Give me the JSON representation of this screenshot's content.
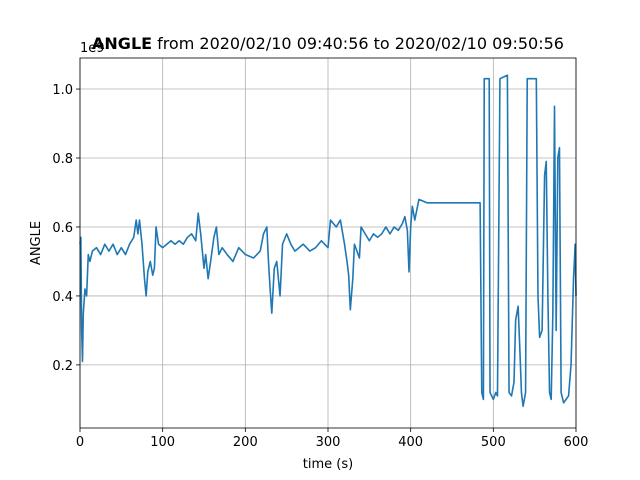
{
  "chart_data": {
    "type": "line",
    "title_bold": "ANGLE",
    "title_rest": "from 2020/02/10 09:40:56 to 2020/02/10 09:50:56",
    "xlabel": "time (s)",
    "ylabel": "ANGLE",
    "y_offset_text": "1e9",
    "color": "#1f77b4",
    "grid": true,
    "xlim": [
      0,
      600
    ],
    "ylim": [
      0.017,
      1.09
    ],
    "xticks": [
      0,
      100,
      200,
      300,
      400,
      500,
      600
    ],
    "yticks": [
      0.2,
      0.4,
      0.6,
      0.8,
      {
        "value": 1,
        "label": "1.0"
      }
    ],
    "x": [
      0,
      1,
      2,
      3,
      4,
      6,
      8,
      10,
      12,
      15,
      20,
      25,
      30,
      35,
      40,
      45,
      50,
      55,
      60,
      65,
      68,
      70,
      72,
      75,
      78,
      80,
      82,
      85,
      88,
      90,
      92,
      95,
      100,
      105,
      110,
      115,
      120,
      125,
      130,
      135,
      140,
      143,
      146,
      150,
      152,
      155,
      158,
      162,
      165,
      168,
      172,
      178,
      185,
      192,
      200,
      210,
      218,
      222,
      226,
      228,
      230,
      232,
      235,
      238,
      242,
      245,
      250,
      255,
      260,
      270,
      278,
      285,
      292,
      300,
      303,
      310,
      315,
      320,
      323,
      325,
      327,
      330,
      332,
      335,
      338,
      340,
      345,
      350,
      355,
      360,
      365,
      370,
      375,
      380,
      385,
      390,
      393,
      396,
      398,
      400,
      402,
      405,
      410,
      420,
      440,
      460,
      480,
      484,
      486,
      488,
      489,
      495,
      496,
      500,
      503,
      505,
      508,
      517,
      519,
      522,
      525,
      527,
      530,
      532,
      534,
      536,
      539,
      541,
      552,
      554,
      556,
      559,
      562,
      564,
      566,
      568,
      570,
      572,
      574,
      576,
      578,
      580,
      582,
      585,
      588,
      591,
      594,
      597,
      599,
      600
    ],
    "values": [
      0.55,
      0.57,
      0.3,
      0.21,
      0.35,
      0.42,
      0.4,
      0.52,
      0.5,
      0.53,
      0.54,
      0.52,
      0.55,
      0.53,
      0.55,
      0.52,
      0.54,
      0.52,
      0.55,
      0.57,
      0.62,
      0.58,
      0.62,
      0.55,
      0.45,
      0.4,
      0.47,
      0.5,
      0.46,
      0.48,
      0.6,
      0.55,
      0.54,
      0.55,
      0.56,
      0.55,
      0.56,
      0.55,
      0.57,
      0.58,
      0.56,
      0.64,
      0.58,
      0.48,
      0.52,
      0.45,
      0.5,
      0.57,
      0.6,
      0.52,
      0.54,
      0.52,
      0.5,
      0.54,
      0.52,
      0.51,
      0.53,
      0.58,
      0.6,
      0.5,
      0.42,
      0.35,
      0.48,
      0.5,
      0.4,
      0.55,
      0.58,
      0.55,
      0.53,
      0.55,
      0.53,
      0.54,
      0.56,
      0.54,
      0.62,
      0.6,
      0.62,
      0.55,
      0.5,
      0.46,
      0.36,
      0.45,
      0.55,
      0.53,
      0.51,
      0.6,
      0.58,
      0.56,
      0.58,
      0.57,
      0.58,
      0.6,
      0.58,
      0.6,
      0.59,
      0.61,
      0.63,
      0.59,
      0.47,
      0.6,
      0.66,
      0.62,
      0.68,
      0.67,
      0.67,
      0.67,
      0.67,
      0.67,
      0.12,
      0.1,
      1.03,
      1.03,
      0.12,
      0.1,
      0.12,
      0.11,
      1.03,
      1.04,
      0.12,
      0.11,
      0.15,
      0.33,
      0.37,
      0.25,
      0.12,
      0.08,
      0.12,
      1.03,
      1.03,
      0.4,
      0.28,
      0.3,
      0.75,
      0.79,
      0.4,
      0.12,
      0.1,
      0.35,
      0.95,
      0.3,
      0.8,
      0.83,
      0.12,
      0.09,
      0.1,
      0.11,
      0.2,
      0.45,
      0.55,
      0.4
    ]
  }
}
